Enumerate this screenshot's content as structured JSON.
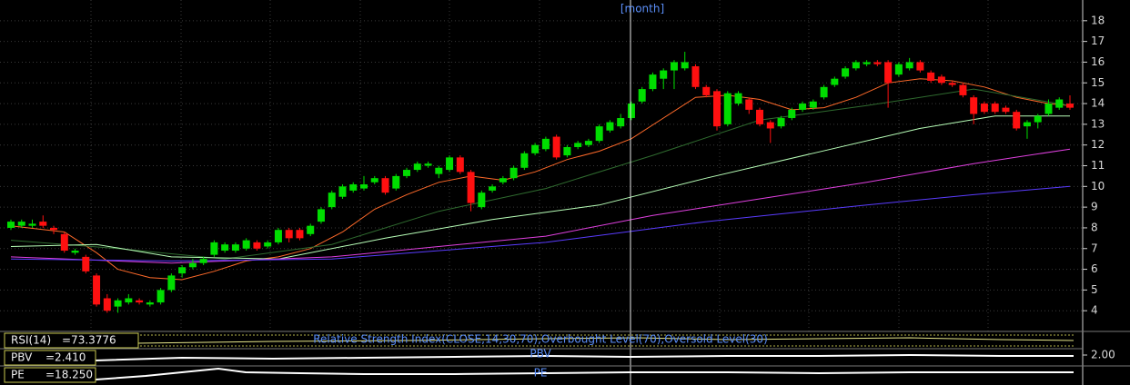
{
  "chart_data": {
    "type": "candlestick",
    "top_label": "[month]",
    "up_color": "#00dd00",
    "down_color": "#ff1010",
    "ylim": [
      3,
      19
    ],
    "yticks": [
      4,
      5,
      6,
      7,
      8,
      9,
      10,
      11,
      12,
      13,
      14,
      15,
      16,
      17,
      18
    ],
    "grid": true,
    "open": [
      8.0,
      8.1,
      8.1,
      8.3,
      8.0,
      7.7,
      6.8,
      6.6,
      5.7,
      4.6,
      4.2,
      4.4,
      4.5,
      4.3,
      4.4,
      5.0,
      5.8,
      6.1,
      6.3,
      6.7,
      6.9,
      6.9,
      7.0,
      7.3,
      7.1,
      7.3,
      7.9,
      7.9,
      7.7,
      8.3,
      9.0,
      9.5,
      9.8,
      9.9,
      10.2,
      10.4,
      9.9,
      10.5,
      10.8,
      11.0,
      10.6,
      10.8,
      11.4,
      10.7,
      9.0,
      9.8,
      10.2,
      10.4,
      10.9,
      11.6,
      11.8,
      12.4,
      11.5,
      11.9,
      12.0,
      12.2,
      12.7,
      12.9,
      13.3,
      14.1,
      14.7,
      15.2,
      15.6,
      15.7,
      15.8,
      14.8,
      14.6,
      13.0,
      14.0,
      14.2,
      13.7,
      13.1,
      12.9,
      13.3,
      13.7,
      13.8,
      14.3,
      14.9,
      15.3,
      15.7,
      15.9,
      16.0,
      16.0,
      15.4,
      15.7,
      16.0,
      15.5,
      15.3,
      15.0,
      14.9,
      14.3,
      14.0,
      14.0,
      13.8,
      13.6,
      12.9,
      13.1,
      13.5,
      13.8,
      14.0
    ],
    "high": [
      8.4,
      8.4,
      8.4,
      8.6,
      8.1,
      7.8,
      7.0,
      6.7,
      5.8,
      4.8,
      4.6,
      4.8,
      4.6,
      4.5,
      5.1,
      5.8,
      6.2,
      6.5,
      6.6,
      7.4,
      7.3,
      7.3,
      7.5,
      7.4,
      7.4,
      8.0,
      8.0,
      8.0,
      8.2,
      9.0,
      9.8,
      10.1,
      10.2,
      10.5,
      10.5,
      10.5,
      10.6,
      10.9,
      11.2,
      11.2,
      11.0,
      11.5,
      11.5,
      10.8,
      9.8,
      10.1,
      10.5,
      11.0,
      11.7,
      12.1,
      12.4,
      12.5,
      12.0,
      12.2,
      12.3,
      13.0,
      13.2,
      13.5,
      14.1,
      14.8,
      15.5,
      15.7,
      16.1,
      16.5,
      15.9,
      14.9,
      14.7,
      14.6,
      14.6,
      14.3,
      13.8,
      13.2,
      13.4,
      13.8,
      14.1,
      14.2,
      14.9,
      15.3,
      15.8,
      16.1,
      16.1,
      16.1,
      16.1,
      16.0,
      16.2,
      16.1,
      15.6,
      15.4,
      15.1,
      15.0,
      14.4,
      14.1,
      14.1,
      13.9,
      13.7,
      13.2,
      13.5,
      14.2,
      14.3,
      14.4
    ],
    "low": [
      7.9,
      8.0,
      8.0,
      8.0,
      7.7,
      6.8,
      6.7,
      5.8,
      4.2,
      3.9,
      3.9,
      4.3,
      4.3,
      4.2,
      4.3,
      4.9,
      5.6,
      6.0,
      6.2,
      6.6,
      6.8,
      6.8,
      6.9,
      6.9,
      7.0,
      7.2,
      7.3,
      7.4,
      7.6,
      8.2,
      8.9,
      9.4,
      9.7,
      9.8,
      10.1,
      9.6,
      9.8,
      10.4,
      10.7,
      10.9,
      10.4,
      10.7,
      10.6,
      8.8,
      8.9,
      9.7,
      10.1,
      10.3,
      10.8,
      11.5,
      11.7,
      11.3,
      11.4,
      11.8,
      11.9,
      12.1,
      12.6,
      12.8,
      13.2,
      14.0,
      14.6,
      14.7,
      14.7,
      15.6,
      14.7,
      14.3,
      12.7,
      12.9,
      13.9,
      13.5,
      12.9,
      12.1,
      12.8,
      13.2,
      13.6,
      13.7,
      14.2,
      14.8,
      15.2,
      15.6,
      15.8,
      15.8,
      13.8,
      15.3,
      15.6,
      15.5,
      15.0,
      14.9,
      14.8,
      14.3,
      13.0,
      13.5,
      13.5,
      13.5,
      12.7,
      12.3,
      12.8,
      13.4,
      13.7,
      13.7
    ],
    "close": [
      8.3,
      8.3,
      8.2,
      8.1,
      7.9,
      6.9,
      6.9,
      5.9,
      4.3,
      4.0,
      4.5,
      4.6,
      4.4,
      4.4,
      5.0,
      5.7,
      6.1,
      6.3,
      6.5,
      7.3,
      7.2,
      7.2,
      7.4,
      7.0,
      7.3,
      7.9,
      7.5,
      7.5,
      8.1,
      8.9,
      9.7,
      10.0,
      10.1,
      10.1,
      10.4,
      9.7,
      10.5,
      10.8,
      11.1,
      11.1,
      10.9,
      11.4,
      10.7,
      9.2,
      9.7,
      10.0,
      10.4,
      10.9,
      11.6,
      12.0,
      12.3,
      11.4,
      11.9,
      12.1,
      12.2,
      12.9,
      13.1,
      13.3,
      14.0,
      14.7,
      15.4,
      15.6,
      16.0,
      16.0,
      14.8,
      14.4,
      12.9,
      14.5,
      14.5,
      13.7,
      13.0,
      12.8,
      13.3,
      13.7,
      14.0,
      14.1,
      14.8,
      15.2,
      15.7,
      16.0,
      16.0,
      15.9,
      15.0,
      15.9,
      16.0,
      15.6,
      15.1,
      15.0,
      14.9,
      14.4,
      13.5,
      13.6,
      13.6,
      13.6,
      12.8,
      13.1,
      13.4,
      14.0,
      14.2,
      13.8
    ],
    "series": [
      {
        "color": "#ff6a2a",
        "x": [
          0,
          5,
          8,
          10,
          13,
          16,
          19,
          22,
          25,
          28,
          31,
          34,
          37,
          40,
          43,
          46,
          49,
          52,
          55,
          58,
          61,
          64,
          67,
          70,
          73,
          76,
          79,
          82,
          85,
          88,
          91,
          94,
          97,
          99
        ],
        "values": [
          8.1,
          7.8,
          6.8,
          6.0,
          5.6,
          5.5,
          5.9,
          6.4,
          6.6,
          7.0,
          7.8,
          8.9,
          9.6,
          10.2,
          10.5,
          10.3,
          10.7,
          11.3,
          11.7,
          12.3,
          13.3,
          14.3,
          14.4,
          14.2,
          13.7,
          13.8,
          14.3,
          15.0,
          15.2,
          15.1,
          14.8,
          14.3,
          14.0,
          13.9
        ]
      },
      {
        "color": "#2f6b2f",
        "x": [
          0,
          10,
          20,
          30,
          40,
          50,
          60,
          70,
          80,
          90,
          99
        ],
        "values": [
          7.4,
          7.0,
          6.5,
          7.2,
          8.8,
          9.9,
          11.5,
          13.2,
          13.9,
          14.7,
          13.9
        ]
      },
      {
        "color": "#b8ffb8",
        "x": [
          0,
          8,
          15,
          25,
          35,
          45,
          55,
          65,
          75,
          85,
          92,
          99
        ],
        "values": [
          7.1,
          7.2,
          6.6,
          6.5,
          7.5,
          8.4,
          9.1,
          10.4,
          11.6,
          12.8,
          13.4,
          13.4
        ]
      },
      {
        "color": "#e040e0",
        "x": [
          0,
          15,
          30,
          50,
          60,
          70,
          80,
          90,
          99
        ],
        "values": [
          6.6,
          6.3,
          6.6,
          7.6,
          8.6,
          9.4,
          10.2,
          11.1,
          11.8
        ]
      },
      {
        "color": "#5a3cff",
        "x": [
          0,
          15,
          30,
          50,
          65,
          80,
          90,
          99
        ],
        "values": [
          6.5,
          6.4,
          6.5,
          7.3,
          8.3,
          9.1,
          9.6,
          10.0
        ]
      }
    ],
    "indicators": {
      "rsi": {
        "name": "RSI(14)",
        "value": 73.3776,
        "value_label": "=73.3776",
        "caption": "Relative Strength Index(CLOSE,14,30,70),Overbought Level(70),Oversold Level(30)"
      },
      "pbv": {
        "name": "PBV",
        "value": 2.41,
        "value_label": "=2.410",
        "caption": "PBV",
        "ticks": [
          {
            "value": 2,
            "label": "2.00"
          }
        ]
      },
      "pe": {
        "name": "PE",
        "value": 18.25,
        "value_label": "=18.250",
        "caption": "PE"
      }
    }
  }
}
